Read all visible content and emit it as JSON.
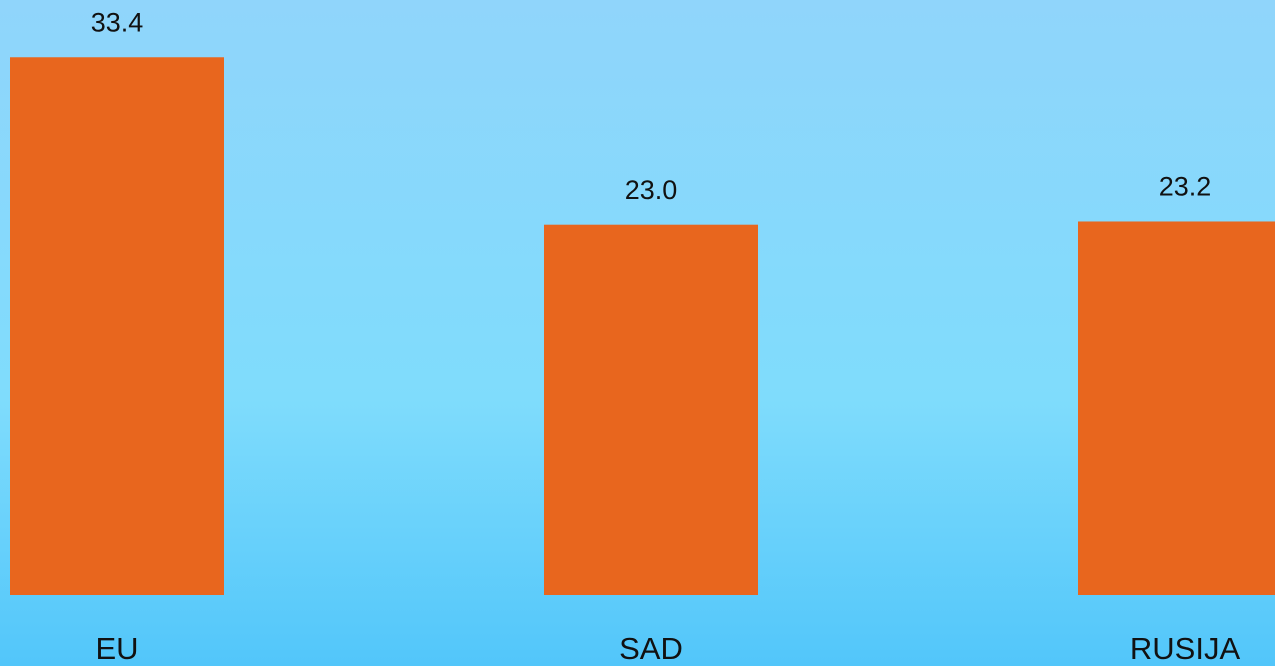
{
  "chart_data": {
    "type": "bar",
    "categories": [
      "EU",
      "SAD",
      "RUSIJA"
    ],
    "values": [
      33.4,
      23.0,
      23.2
    ],
    "value_labels": [
      "33.4",
      "23.0",
      "23.2"
    ],
    "color": "#e8661e"
  }
}
